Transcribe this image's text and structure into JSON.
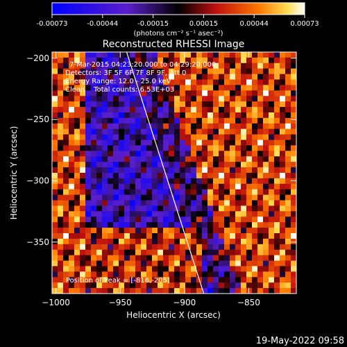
{
  "colorbar": {
    "ticks": [
      "-0.00073",
      "-0.00044",
      "-0.00015",
      "0.00015",
      "0.00044",
      "0.00073"
    ],
    "units": "(photons cm⁻² s⁻¹ asec⁻²)"
  },
  "annotations": {
    "time": "7-Mar-2015 04:23:20.000 to 04:29:20.000",
    "detectors": "Detectors: 3F 5F 6F 7F 8F 9F, Att 0",
    "energy": "Energy Range: 12.0 - 25.0 keV",
    "clean": "Clean    Total counts: 6.53E+03",
    "peak": "Position of Peak = [-816,-205]"
  },
  "footer": {
    "timestamp": "19-May-2022 09:58"
  },
  "colors": {
    "background": "#000000",
    "limb": "#ffffff"
  },
  "chart_data": {
    "type": "heatmap",
    "title": "Reconstructed RHESSI Image",
    "xlabel": "Heliocentric X (arcsec)",
    "ylabel": "Heliocentric Y (arcsec)",
    "xlim": [
      -1003,
      -813
    ],
    "ylim": [
      -392,
      -195
    ],
    "xticks": [
      -1000,
      -950,
      -900,
      -850
    ],
    "yticks": [
      -200,
      -250,
      -300,
      -350
    ],
    "xtick_labels": [
      "−1000",
      "−950",
      "−900",
      "−850"
    ],
    "ytick_labels": [
      "−200",
      "−250",
      "−300",
      "−350"
    ],
    "zlim": [
      -0.00073,
      0.00073
    ],
    "colormap": "blue-purple-black-red-orange-yellow-white",
    "peak": [
      -816,
      -205
    ],
    "limb_line": [
      [
        -945,
        -195
      ],
      [
        -885,
        -392
      ]
    ]
  }
}
